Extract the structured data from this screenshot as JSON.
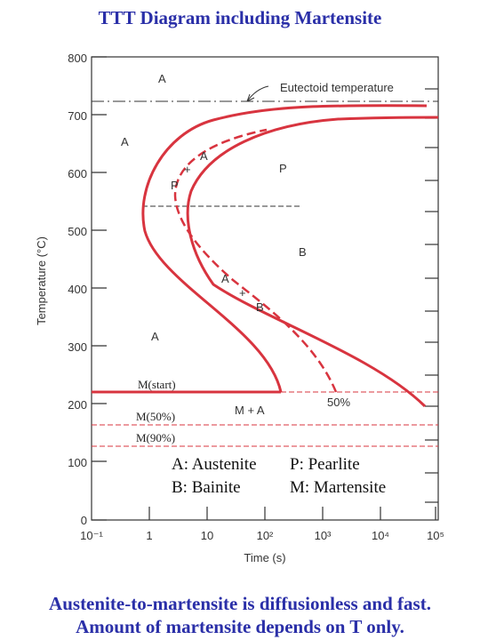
{
  "title": "TTT Diagram including Martensite",
  "caption": {
    "line1": "Austenite-to-martensite is diffusionless and fast.",
    "line2": "Amount of martensite depends on T only."
  },
  "axes": {
    "ylabel": "Temperature (°C)",
    "xlabel": "Time (s)",
    "yticks": [
      "0",
      "100",
      "200",
      "300",
      "400",
      "500",
      "600",
      "700",
      "800"
    ],
    "xticks": [
      "10⁻¹",
      "1",
      "10",
      "10²",
      "10³",
      "10⁴",
      "10⁵"
    ]
  },
  "annotations": {
    "eutectoid": "Eutectoid temperature",
    "regions": {
      "a_top": "A",
      "a_left": "A",
      "a_nose": "A",
      "p_nose": "P",
      "p_right": "P",
      "b_right": "B",
      "a_bainite": "A",
      "b_bainite": "B",
      "a_low": "A",
      "m_plus_a": "M + A"
    },
    "plus": "+",
    "m_start": "M(start)",
    "m_50": "M(50%)",
    "m_90": "M(90%)",
    "fifty_percent": "50%"
  },
  "legend": {
    "austenite": "A: Austenite",
    "pearlite": "P: Pearlite",
    "bainite": "B: Bainite",
    "martensite": "M: Martensite"
  },
  "colors": {
    "curve": "#d8343f",
    "title": "#2a2fa8",
    "axis": "#333333"
  },
  "chart_data": {
    "type": "line",
    "xlabel": "Time (s)",
    "ylabel": "Temperature (°C)",
    "xscale": "log",
    "xlim": [
      0.1,
      100000
    ],
    "ylim": [
      0,
      800
    ],
    "eutectoid_temperature": 727,
    "lines": [
      {
        "name": "M(start)",
        "y": 220
      },
      {
        "name": "M(50%)",
        "y": 165
      },
      {
        "name": "M(90%)",
        "y": 130
      }
    ]
  }
}
